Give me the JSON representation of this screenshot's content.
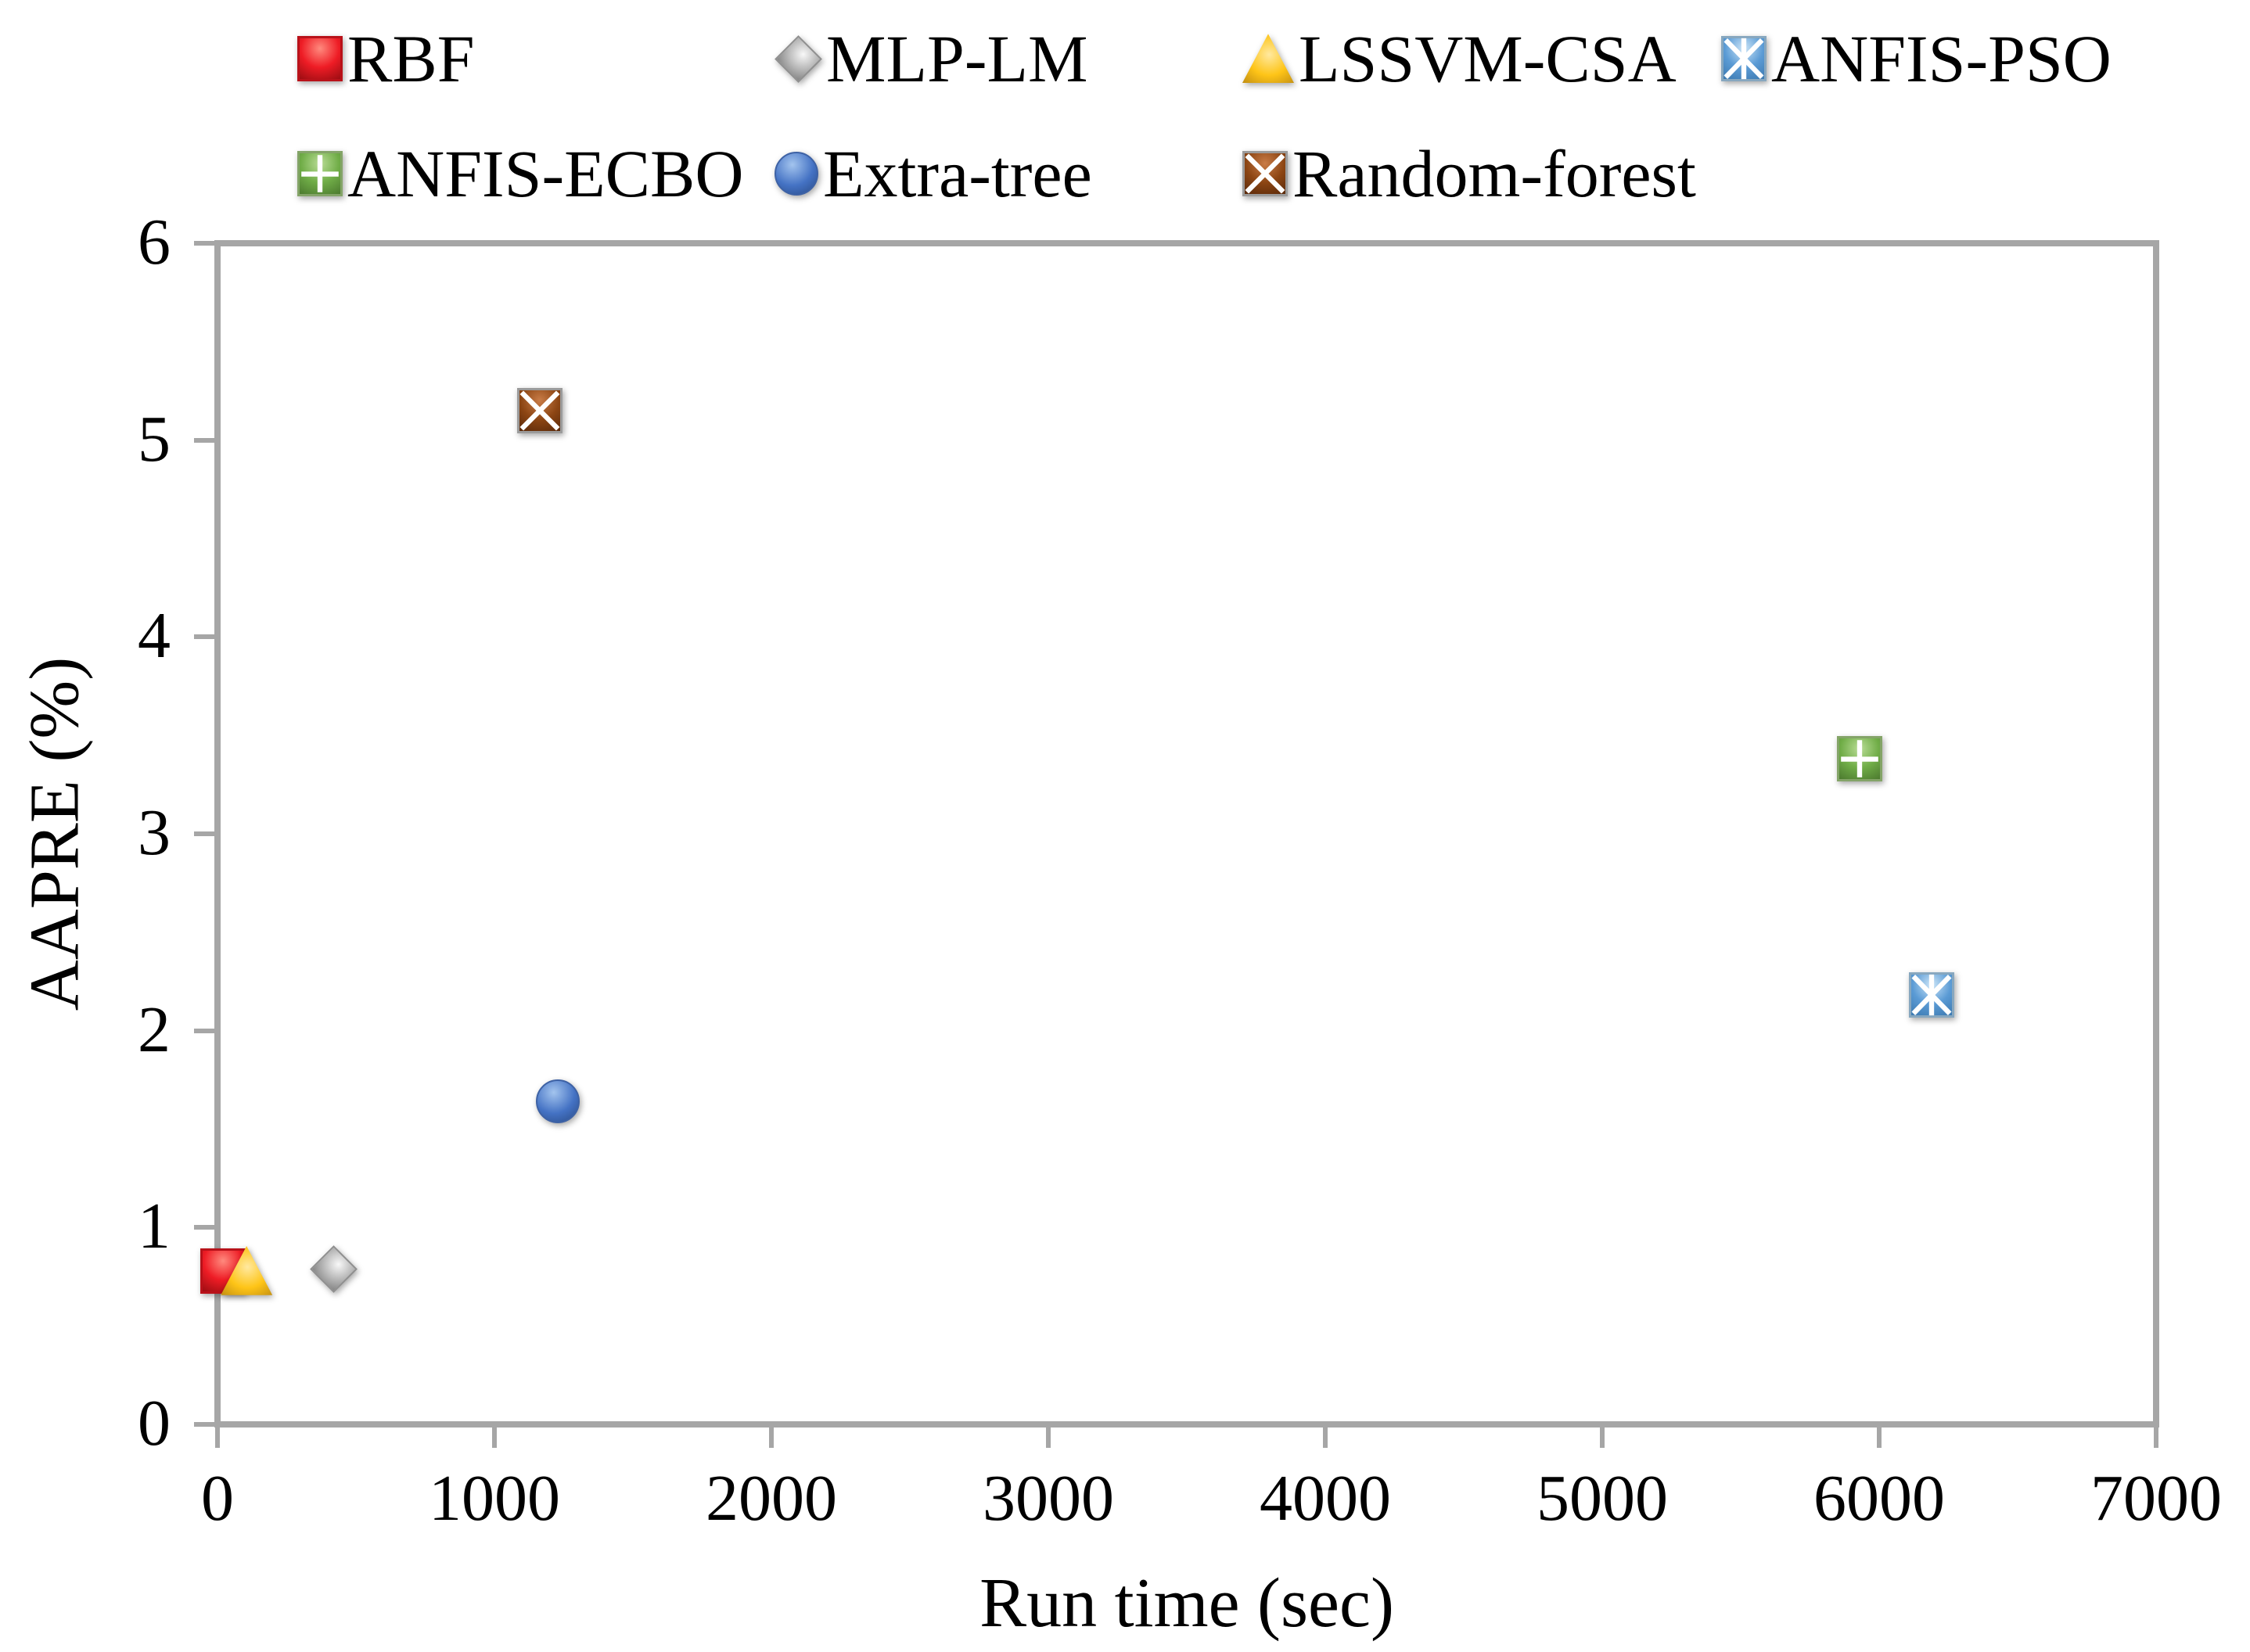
{
  "chart_data": {
    "type": "scatter",
    "title": "",
    "xlabel": "Run time (sec)",
    "ylabel": "AAPRE (%)",
    "xlim": [
      0,
      7000
    ],
    "ylim": [
      0,
      6
    ],
    "x_ticks": [
      "0",
      "1000",
      "2000",
      "3000",
      "4000",
      "5000",
      "6000",
      "7000"
    ],
    "y_ticks": [
      "0",
      "1",
      "2",
      "3",
      "4",
      "5",
      "6"
    ],
    "grid": false,
    "legend_position": "top",
    "frame_color": "#a6a6a6",
    "legend_rows": [
      [
        "RBF",
        "MLP-LM",
        "LSSVM-CSA",
        "ANFIS-PSO"
      ],
      [
        "ANFIS-ECBO",
        "Extra-tree",
        "Random-forest"
      ]
    ],
    "series": [
      {
        "name": "RBF",
        "marker": "square",
        "glyph": "none",
        "x": 20,
        "y": 0.78,
        "colors": {
          "light": "#ff8a7e",
          "mid": "#ee1c25",
          "dark": "#9c0d12",
          "edge": "#b9121a"
        }
      },
      {
        "name": "MLP-LM",
        "marker": "diamond",
        "glyph": "none",
        "x": 420,
        "y": 0.79,
        "colors": {
          "light": "#f8f8f8",
          "mid": "#b9b9b9",
          "dark": "#858585",
          "edge": "#8f8f8f"
        }
      },
      {
        "name": "LSSVM-CSA",
        "marker": "triangle",
        "glyph": "none",
        "x": 105,
        "y": 0.78,
        "colors": {
          "light": "#ffe9a0",
          "mid": "#fec417",
          "dark": "#bd8a12",
          "edge": "#caa53a"
        }
      },
      {
        "name": "ANFIS-PSO",
        "marker": "square",
        "glyph": "asterisk",
        "x": 6190,
        "y": 2.18,
        "colors": {
          "light": "#cde6f8",
          "mid": "#5b9bd5",
          "dark": "#3c79b0",
          "edge": "#87a7bf"
        }
      },
      {
        "name": "ANFIS-ECBO",
        "marker": "square",
        "glyph": "plus",
        "x": 5930,
        "y": 3.38,
        "colors": {
          "light": "#b9dc96",
          "mid": "#70ad47",
          "dark": "#4c7a2f",
          "edge": "#84a468"
        }
      },
      {
        "name": "Extra-tree",
        "marker": "circle",
        "glyph": "none",
        "x": 1230,
        "y": 1.64,
        "colors": {
          "light": "#a3c4ee",
          "mid": "#4472c4",
          "dark": "#2a4b85",
          "edge": "#3e62a5"
        }
      },
      {
        "name": "Random-forest",
        "marker": "square",
        "glyph": "x",
        "x": 1165,
        "y": 5.15,
        "colors": {
          "light": "#c97c47",
          "mid": "#8c4513",
          "dark": "#59290a",
          "edge": "#9b9b9b"
        }
      }
    ]
  }
}
